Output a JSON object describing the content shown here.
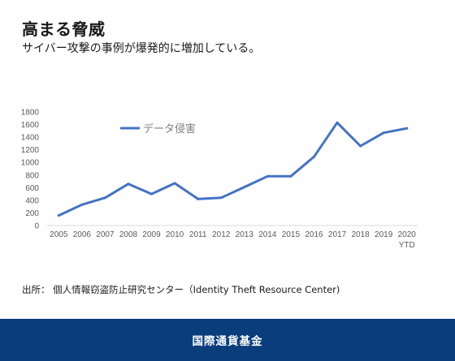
{
  "header": {
    "title": "高まる脅威",
    "subtitle": "サイバー攻撃の事例が爆発的に増加している。"
  },
  "chart_data": {
    "type": "line",
    "categories": [
      "2005",
      "2006",
      "2007",
      "2008",
      "2009",
      "2010",
      "2011",
      "2012",
      "2013",
      "2014",
      "2015",
      "2016",
      "2017",
      "2018",
      "2019",
      "2020"
    ],
    "category_sublabels": {
      "2020": "YTD"
    },
    "series": [
      {
        "name": "データ侵害",
        "values": [
          160,
          330,
          440,
          660,
          500,
          670,
          420,
          440,
          610,
          780,
          780,
          1090,
          1630,
          1260,
          1470,
          1540
        ],
        "color": "#4472c4"
      }
    ],
    "ylim": [
      0,
      1800
    ],
    "yticks": [
      0,
      200,
      400,
      600,
      800,
      1000,
      1200,
      1400,
      1600,
      1800
    ],
    "xlabel": "",
    "ylabel": "",
    "grid": false,
    "legend": "top-left"
  },
  "source": {
    "text": "出所： 個人情報窃盗防止研究センター（Identity Theft Resource Center)"
  },
  "footer": {
    "org_name": "国際通貨基金",
    "background": "#0a3d7c"
  }
}
